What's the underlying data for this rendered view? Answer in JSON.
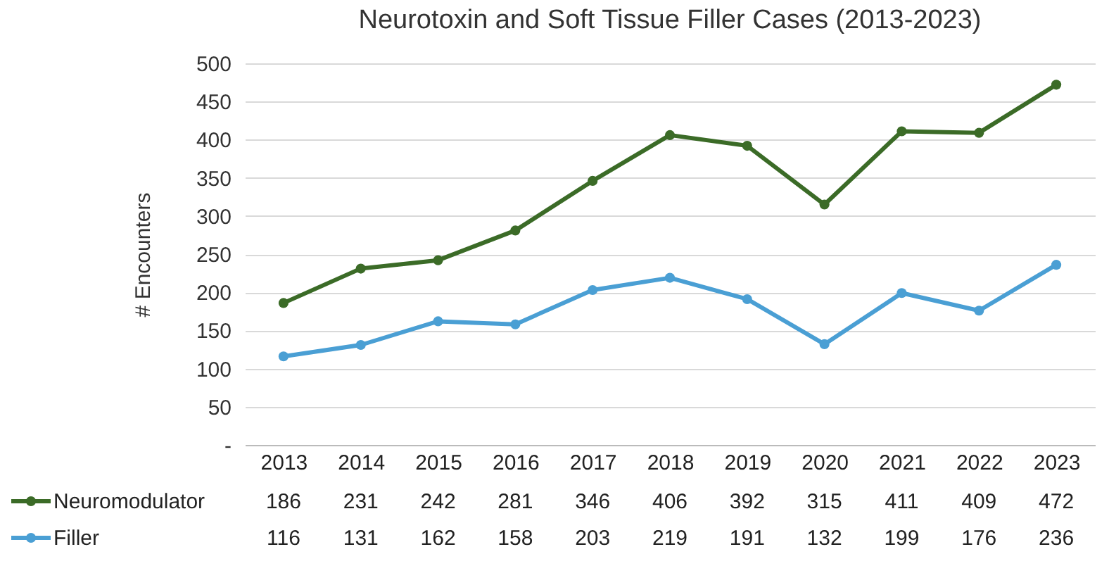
{
  "chart_data": {
    "type": "line",
    "title": "Neurotoxin and Soft Tissue Filler Cases (2013-2023)",
    "ylabel": "# Encounters",
    "categories": [
      "2013",
      "2014",
      "2015",
      "2016",
      "2017",
      "2018",
      "2019",
      "2020",
      "2021",
      "2022",
      "2023"
    ],
    "series": [
      {
        "name": "Neuromodulator",
        "color": "#3b6b27",
        "values": [
          186,
          231,
          242,
          281,
          346,
          406,
          392,
          315,
          411,
          409,
          472
        ]
      },
      {
        "name": "Filler",
        "color": "#4a9fd4",
        "values": [
          116,
          131,
          162,
          158,
          203,
          219,
          191,
          132,
          199,
          176,
          236
        ]
      }
    ],
    "ylim": [
      0,
      500
    ],
    "yticks": [
      {
        "value": 0,
        "label": "-"
      },
      50,
      100,
      150,
      200,
      250,
      300,
      350,
      400,
      450,
      500
    ],
    "grid": "y",
    "legend": "bottom",
    "data_labels": true,
    "marker": "circle",
    "line_style": "solid"
  }
}
